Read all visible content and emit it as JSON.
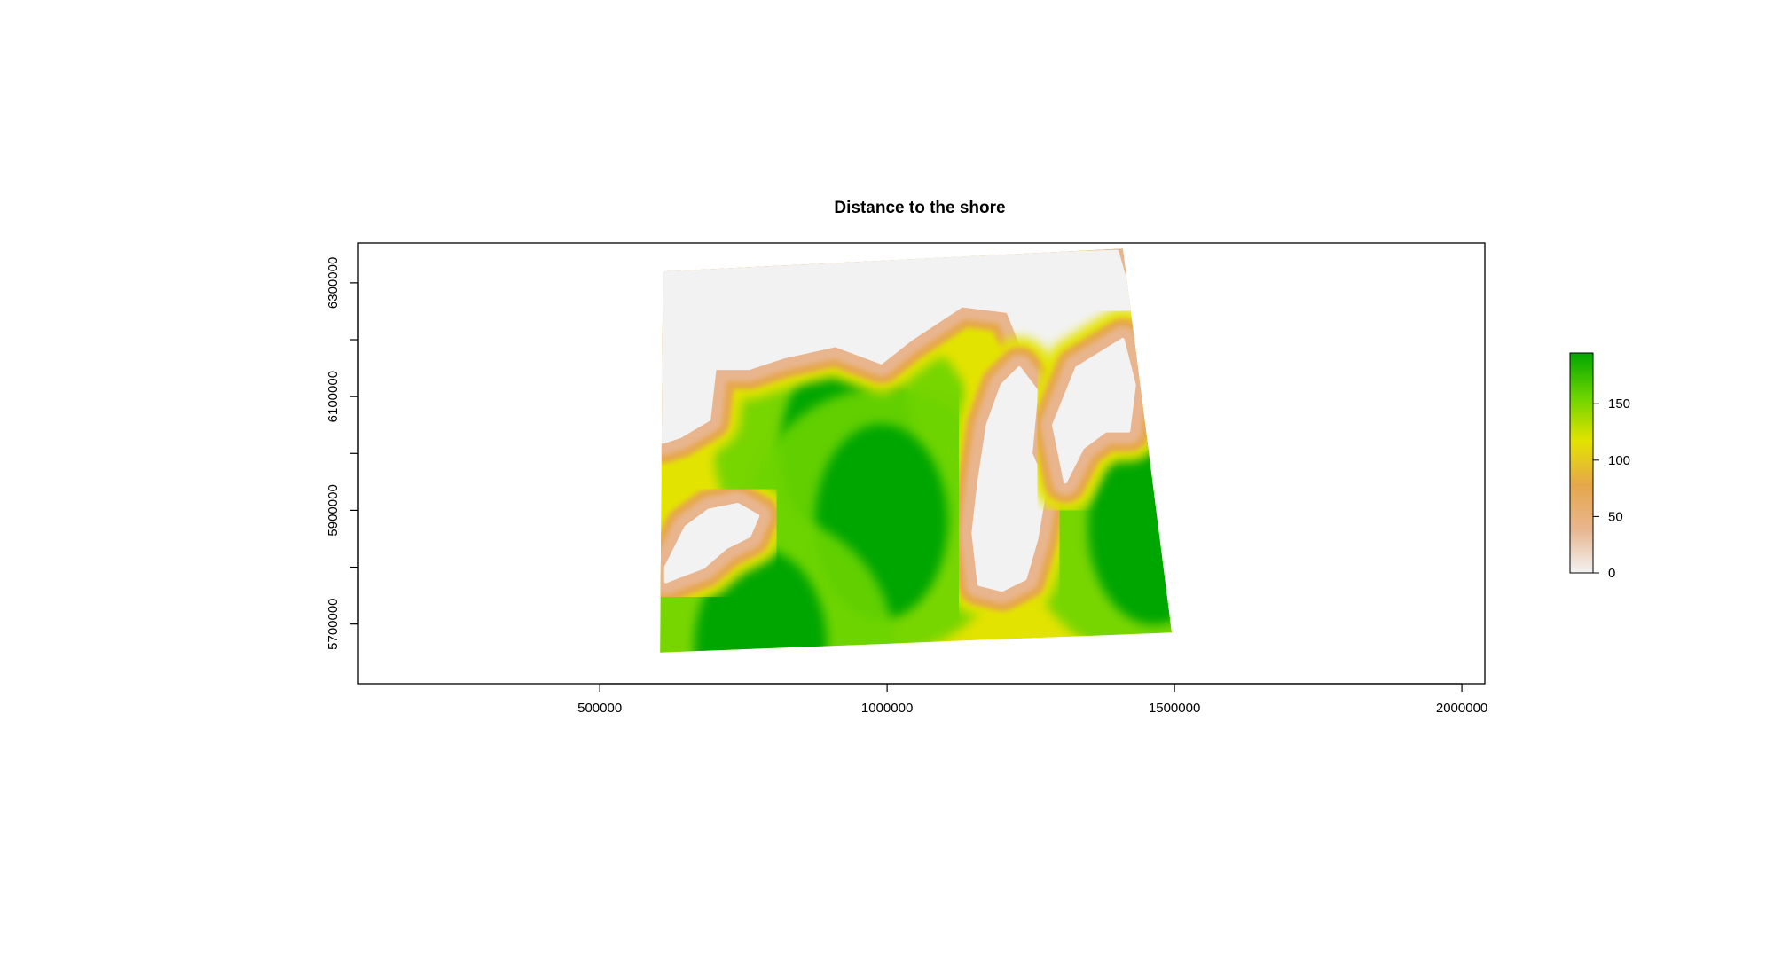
{
  "chart_data": {
    "type": "heatmap",
    "title": "Distance to the shore",
    "xlabel": "",
    "ylabel": "",
    "xlim": [
      80000,
      2040000
    ],
    "ylim": [
      5595000,
      6370000
    ],
    "x_ticks": [
      500000,
      1000000,
      1500000,
      2000000
    ],
    "x_tick_labels": [
      "500000",
      "1000000",
      "1500000",
      "2000000"
    ],
    "y_ticks": [
      5700000,
      5800000,
      5900000,
      6000000,
      6100000,
      6200000,
      6300000
    ],
    "y_tick_labels": [
      "5700000",
      "5900000",
      "6100000",
      "6300000"
    ],
    "grid": false,
    "legend": {
      "placement": "right",
      "min": 0,
      "max": 195,
      "ticks": [
        0,
        50,
        100,
        150
      ],
      "tick_labels": [
        "0",
        "50",
        "100",
        "150"
      ],
      "colors": [
        "#f2f2f2",
        "#e8b58e",
        "#e6a74b",
        "#e3e300",
        "#6cd400",
        "#00a600"
      ]
    },
    "raster_extent_corners": [
      [
        610000,
        6320000
      ],
      [
        1410000,
        6360000
      ],
      [
        1495000,
        5685000
      ],
      [
        605000,
        5650000
      ]
    ],
    "sea_centers": [
      [
        930000,
        6010000
      ],
      [
        990000,
        5880000
      ],
      [
        1465000,
        5870000
      ],
      [
        780000,
        5660000
      ]
    ],
    "land_areas": [
      {
        "name": "north-coast",
        "points": [
          [
            610000,
            6330000
          ],
          [
            1400000,
            6355000
          ],
          [
            1430000,
            6250000
          ],
          [
            1380000,
            6150000
          ],
          [
            1250000,
            6150000
          ],
          [
            1210000,
            6250000
          ],
          [
            1130000,
            6260000
          ],
          [
            1040000,
            6200000
          ],
          [
            990000,
            6160000
          ],
          [
            910000,
            6190000
          ],
          [
            820000,
            6170000
          ],
          [
            760000,
            6150000
          ],
          [
            700000,
            6150000
          ],
          [
            690000,
            6060000
          ],
          [
            640000,
            6030000
          ],
          [
            610000,
            6020000
          ]
        ]
      },
      {
        "name": "island-west",
        "points": [
          [
            615000,
            5800000
          ],
          [
            650000,
            5870000
          ],
          [
            690000,
            5900000
          ],
          [
            740000,
            5910000
          ],
          [
            775000,
            5890000
          ],
          [
            760000,
            5855000
          ],
          [
            720000,
            5835000
          ],
          [
            680000,
            5800000
          ],
          [
            640000,
            5785000
          ],
          [
            615000,
            5775000
          ]
        ]
      },
      {
        "name": "island-central",
        "points": [
          [
            1160000,
            5770000
          ],
          [
            1150000,
            5860000
          ],
          [
            1160000,
            5950000
          ],
          [
            1175000,
            6050000
          ],
          [
            1200000,
            6120000
          ],
          [
            1230000,
            6150000
          ],
          [
            1260000,
            6110000
          ],
          [
            1250000,
            6000000
          ],
          [
            1275000,
            5940000
          ],
          [
            1260000,
            5850000
          ],
          [
            1240000,
            5780000
          ],
          [
            1200000,
            5760000
          ]
        ]
      },
      {
        "name": "east-coast",
        "points": [
          [
            1310000,
            5950000
          ],
          [
            1340000,
            6010000
          ],
          [
            1380000,
            6040000
          ],
          [
            1420000,
            6040000
          ],
          [
            1430000,
            6120000
          ],
          [
            1410000,
            6200000
          ],
          [
            1330000,
            6150000
          ],
          [
            1290000,
            6050000
          ]
        ]
      }
    ]
  }
}
